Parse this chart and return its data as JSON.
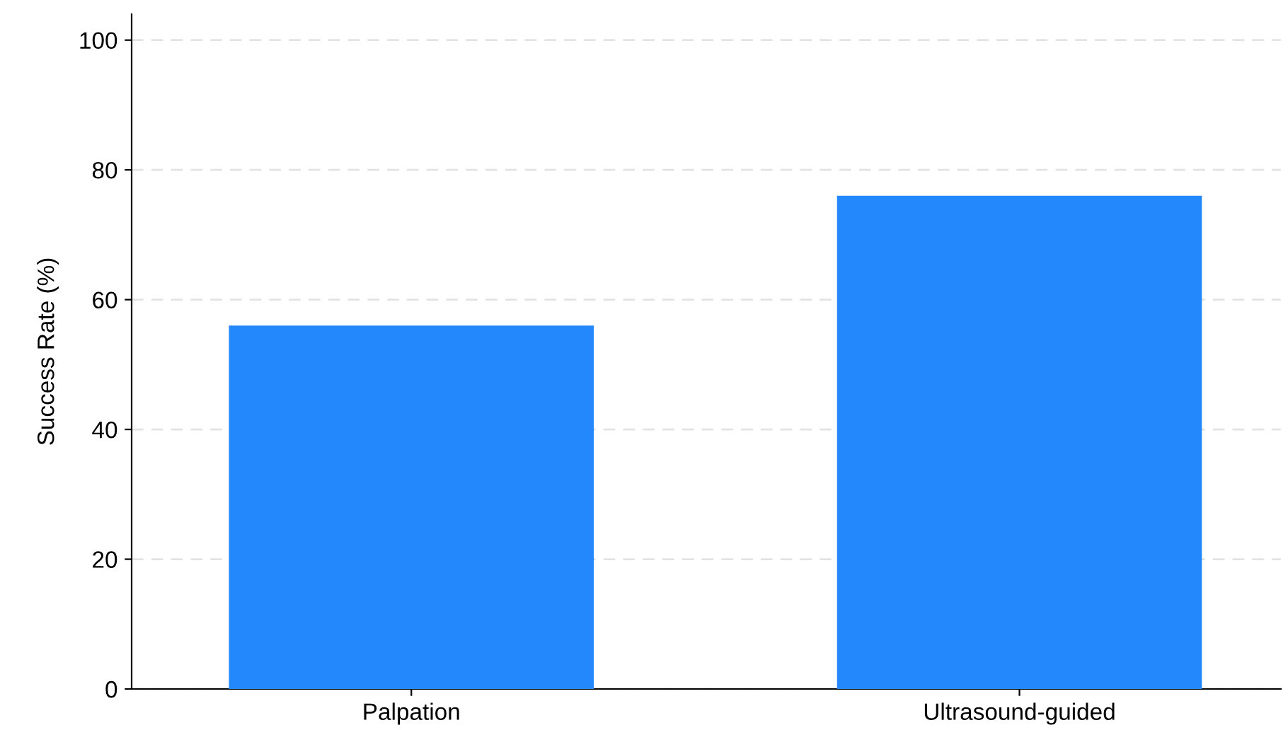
{
  "chart_data": {
    "type": "bar",
    "ylabel": "Success Rate (%)",
    "categories": [
      "Palpation",
      "Ultrasound-guided"
    ],
    "values": [
      56,
      76
    ],
    "color": "#2288fb",
    "ylim": [
      0,
      104
    ],
    "yticks": [
      0,
      20,
      40,
      60,
      80,
      100
    ],
    "grid": "y"
  }
}
